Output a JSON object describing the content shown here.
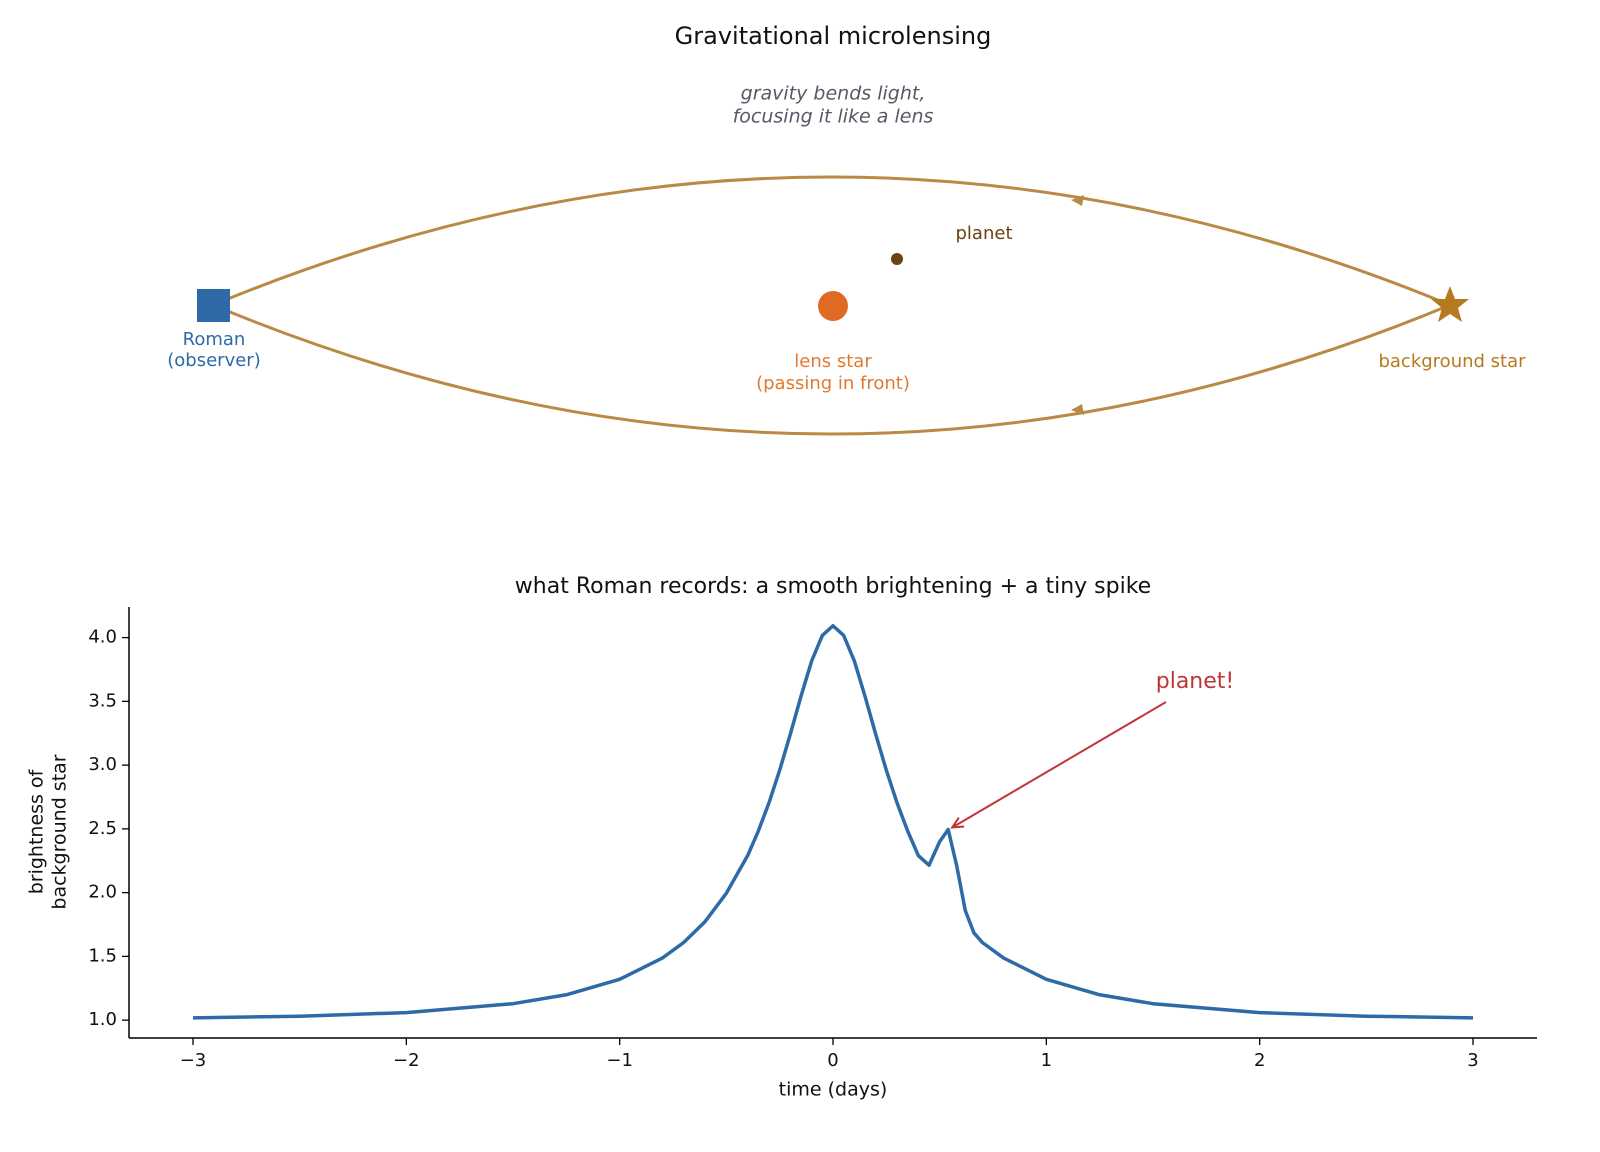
{
  "diagram": {
    "title": "Gravitational microlensing",
    "subtitle": [
      "gravity bends light,",
      "focusing it like a lens"
    ],
    "observer_label": [
      "Roman",
      "(observer)"
    ],
    "lens_label": [
      "lens star",
      "(passing in front)"
    ],
    "planet_label": "planet",
    "source_label": "background star"
  },
  "chart_data": {
    "type": "line",
    "title": "what Roman records: a smooth brightening + a tiny spike",
    "xlabel": "time (days)",
    "ylabel": [
      "brightness of",
      "background star"
    ],
    "annotation": "planet!",
    "annotation_color": "#c0353a",
    "x": [
      -3,
      -2.5,
      -2,
      -1.5,
      -1.25,
      -1,
      -0.8,
      -0.7,
      -0.6,
      -0.5,
      -0.4,
      -0.35,
      -0.3,
      -0.25,
      -0.2,
      -0.15,
      -0.1,
      -0.05,
      0,
      0.05,
      0.1,
      0.15,
      0.2,
      0.25,
      0.3,
      0.35,
      0.4,
      0.45,
      0.5,
      0.54,
      0.58,
      0.62,
      0.66,
      0.7,
      0.8,
      1,
      1.25,
      1.5,
      2,
      2.5,
      3
    ],
    "series": [
      {
        "name": "brightness",
        "color": "#2e6aa8",
        "values": [
          1.018,
          1.031,
          1.059,
          1.129,
          1.199,
          1.32,
          1.487,
          1.609,
          1.772,
          1.995,
          2.291,
          2.483,
          2.705,
          2.96,
          3.243,
          3.54,
          3.817,
          4.017,
          4.093,
          4.017,
          3.817,
          3.54,
          3.243,
          2.96,
          2.705,
          2.483,
          2.291,
          2.215,
          2.4,
          2.495,
          2.21,
          1.86,
          1.686,
          1.609,
          1.487,
          1.32,
          1.199,
          1.129,
          1.059,
          1.031,
          1.018
        ]
      }
    ],
    "xlim": [
      -3.3,
      3.3
    ],
    "ylim": [
      0.86,
      4.24
    ],
    "xticks": [
      {
        "value": -3,
        "label": "−3"
      },
      {
        "value": -2,
        "label": "−2"
      },
      {
        "value": -1,
        "label": "−1"
      },
      0,
      1,
      2,
      3
    ],
    "yticks": [
      {
        "value": 1,
        "label": "1.0"
      },
      {
        "value": 1.5,
        "label": "1.5"
      },
      {
        "value": 2,
        "label": "2.0"
      },
      {
        "value": 2.5,
        "label": "2.5"
      },
      {
        "value": 3,
        "label": "3.0"
      },
      {
        "value": 3.5,
        "label": "3.5"
      },
      {
        "value": 4,
        "label": "4.0"
      }
    ],
    "grid": false
  }
}
